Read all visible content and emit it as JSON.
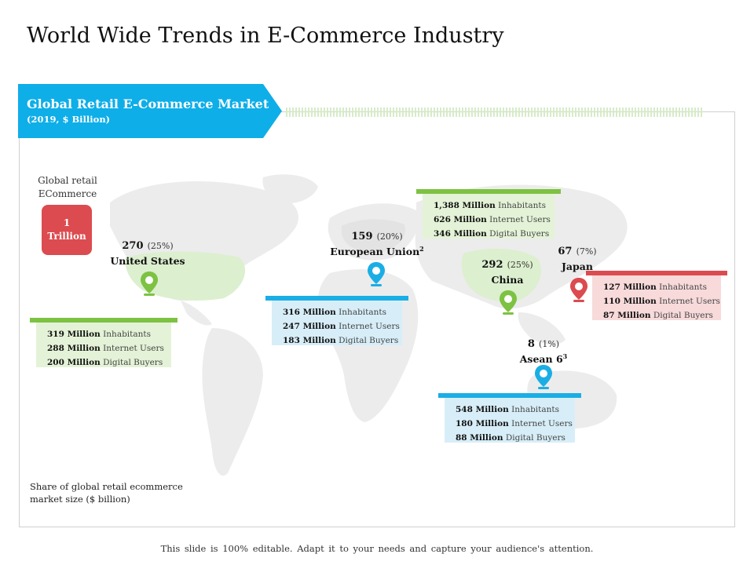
{
  "title": "World Wide Trends in E-Commerce Industry",
  "banner": {
    "title": "Global Retail E-Commerce Market",
    "subtitle": "(2019, $ Billion)",
    "color": "#0eaee8"
  },
  "global": {
    "label": "Global retail ECommerce",
    "value_line1": "1",
    "value_line2": "Trillion",
    "color": "#dc4b4f"
  },
  "share_note": "Share of global retail ecommerce market size ($ billion)",
  "footer": "This slide is 100% editable. Adapt it to your needs and capture your audience's attention.",
  "regions": {
    "us": {
      "value": "270",
      "pct": "(25%)",
      "name": "United States",
      "sup": "",
      "color": "#7dc242",
      "rows": [
        {
          "num": "319 Million",
          "label": "Inhabitants"
        },
        {
          "num": "288 Million",
          "label": "Internet Users"
        },
        {
          "num": "200 Million",
          "label": "Digital Buyers"
        }
      ]
    },
    "eu": {
      "value": "159",
      "pct": "(20%)",
      "name": "European Union",
      "sup": "2",
      "color": "#1aaee5",
      "rows": [
        {
          "num": "316 Million",
          "label": "Inhabitants"
        },
        {
          "num": "247 Million",
          "label": "Internet Users"
        },
        {
          "num": "183 Million",
          "label": "Digital Buyers"
        }
      ]
    },
    "china": {
      "value": "292",
      "pct": "(25%)",
      "name": "China",
      "sup": "",
      "color": "#7dc242",
      "rows": [
        {
          "num": "1,388 Million",
          "label": "Inhabitants"
        },
        {
          "num": "626 Million",
          "label": "Internet Users"
        },
        {
          "num": "346 Million",
          "label": "Digital Buyers"
        }
      ]
    },
    "japan": {
      "value": "67",
      "pct": "(7%)",
      "name": "Japan",
      "sup": "",
      "color": "#dc4b4f",
      "rows": [
        {
          "num": "127 Million",
          "label": "Inhabitants"
        },
        {
          "num": "110 Million",
          "label": "Internet Users"
        },
        {
          "num": "87 Million",
          "label": "Digital Buyers"
        }
      ]
    },
    "asean": {
      "value": "8",
      "pct": "(1%)",
      "name": "Asean 6",
      "sup": "3",
      "color": "#1aaee5",
      "rows": [
        {
          "num": "548 Million",
          "label": "Inhabitants"
        },
        {
          "num": "180 Million",
          "label": "Internet Users"
        },
        {
          "num": "88 Million",
          "label": "Digital Buyers"
        }
      ]
    }
  }
}
